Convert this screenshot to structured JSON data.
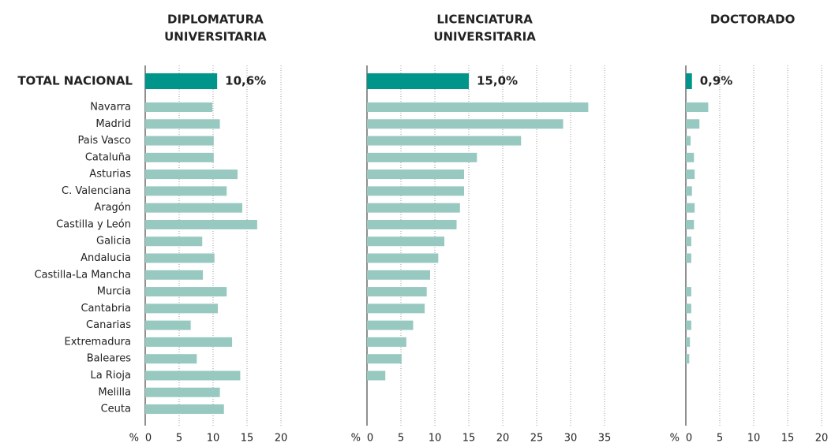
{
  "chart_data": [
    {
      "type": "bar",
      "orientation": "horizontal",
      "title": [
        "DIPLOMATURA",
        "UNIVERSITARIA"
      ],
      "categories": [
        "TOTAL NACIONAL",
        "Navarra",
        "Madrid",
        "Pais Vasco",
        "Cataluña",
        "Asturias",
        "C. Valenciana",
        "Aragón",
        "Castilla y León",
        "Galicia",
        "Andalucia",
        "Castilla-La Mancha",
        "Murcia",
        "Cantabria",
        "Canarias",
        "Extremadura",
        "Baleares",
        "La Rioja",
        "Melilla",
        "Ceuta"
      ],
      "values": [
        10.6,
        9.9,
        11.0,
        10.1,
        10.1,
        13.6,
        12.0,
        14.3,
        16.5,
        8.4,
        10.2,
        8.5,
        12.0,
        10.7,
        6.7,
        12.8,
        7.6,
        14.0,
        11.0,
        11.6
      ],
      "value_labels": [
        "10,6%",
        null,
        null,
        null,
        null,
        null,
        null,
        null,
        null,
        null,
        null,
        null,
        null,
        null,
        null,
        null,
        null,
        null,
        null,
        null
      ],
      "unit": "%",
      "xlim": [
        0,
        23
      ],
      "xticks": [
        0,
        5,
        10,
        15,
        20
      ],
      "grid": true,
      "color": "#97c9c0",
      "highlight_color": "#00958a"
    },
    {
      "type": "bar",
      "orientation": "horizontal",
      "title": [
        "LICENCIATURA",
        "UNIVERSITARIA"
      ],
      "values": [
        15.0,
        32.6,
        28.9,
        22.7,
        16.2,
        14.3,
        14.3,
        13.7,
        13.2,
        11.4,
        10.5,
        9.3,
        8.8,
        8.5,
        6.8,
        5.8,
        5.1,
        2.7,
        null,
        null
      ],
      "value_labels": [
        "15,0%",
        null,
        null,
        null,
        null,
        null,
        null,
        null,
        null,
        null,
        null,
        null,
        null,
        null,
        null,
        null,
        null,
        null,
        null,
        null
      ],
      "unit": "%",
      "xlim": [
        0,
        37
      ],
      "xticks": [
        0,
        5,
        10,
        15,
        20,
        25,
        30,
        35
      ],
      "grid": true,
      "color": "#97c9c0",
      "highlight_color": "#00958a"
    },
    {
      "type": "bar",
      "orientation": "horizontal",
      "title": [
        "DOCTORADO"
      ],
      "values": [
        0.9,
        3.3,
        2.0,
        0.7,
        1.2,
        1.3,
        0.9,
        1.3,
        1.2,
        0.8,
        0.8,
        null,
        0.8,
        0.8,
        0.8,
        0.6,
        0.5,
        null,
        null,
        null
      ],
      "value_labels": [
        "0,9%",
        null,
        null,
        null,
        null,
        null,
        null,
        null,
        null,
        null,
        null,
        null,
        null,
        null,
        null,
        null,
        null,
        null,
        null,
        null
      ],
      "unit": "%",
      "xlim": [
        0,
        22
      ],
      "xticks": [
        0,
        5,
        10,
        15,
        20
      ],
      "grid": true,
      "color": "#97c9c0",
      "highlight_color": "#00958a"
    }
  ]
}
